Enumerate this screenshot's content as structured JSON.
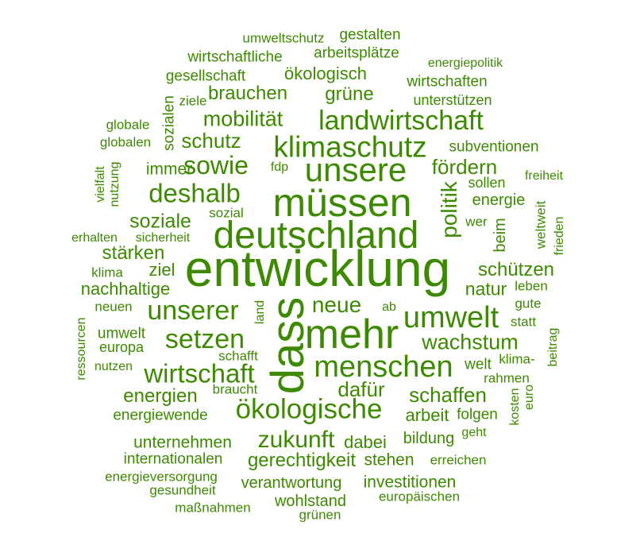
{
  "color": "#3d8a00",
  "words": [
    "entwicklung",
    "dass",
    "deutschland",
    "mehr",
    "müssen",
    "unsere",
    "menschen",
    "umwelt",
    "klimaschutz",
    "landwirtschaft",
    "ökologische",
    "setzen",
    "unserer",
    "wirtschaft",
    "deshalb",
    "sowie",
    "zukunft",
    "politik",
    "wachstum",
    "mobilität",
    "neue",
    "schutz",
    "dafür",
    "schaffen",
    "fördern",
    "soziale",
    "gerechtigkeit",
    "energien",
    "stärken",
    "schützen",
    "natur",
    "grüne",
    "brauchen",
    "nachhaltige",
    "dabei",
    "arbeit",
    "unternehmen",
    "stehen",
    "investitionen",
    "wohlstand",
    "verantwortung",
    "energiewende",
    "bildung",
    "folgen",
    "ökologisch",
    "immer",
    "welt",
    "energie",
    "beim",
    "sozialen",
    "gestalten",
    "arbeitsplätze",
    "wirtschaftliche",
    "umweltschutz",
    "gesellschaft",
    "wirtschaften",
    "unterstützen",
    "subventionen",
    "sollen",
    "weltweit",
    "freiheit",
    "frieden",
    "leben",
    "gute",
    "statt",
    "beitrag",
    "klima-",
    "rahmen",
    "euro",
    "kosten",
    "geht",
    "erreichen",
    "europäischen",
    "grünen",
    "maßnahmen",
    "gesundheit",
    "energieversorgung",
    "internationalen",
    "nutzen",
    "europa",
    "umwelt",
    "ressourcen",
    "neuen",
    "klima",
    "erhalten",
    "sicherheit",
    "vielfalt",
    "nutzung",
    "globalen",
    "globale",
    "ziele",
    "energiepolitik",
    "sozial",
    "fdp",
    "land",
    "schafft",
    "braucht",
    "ab",
    "wer",
    "ziel"
  ]
}
